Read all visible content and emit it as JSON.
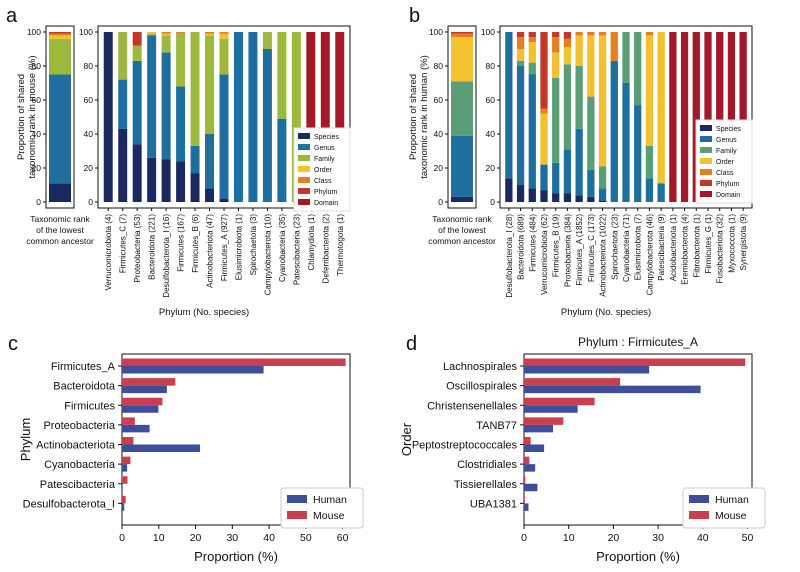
{
  "colors": {
    "Species": "#1a2a5e",
    "Genus": "#1f6f9e",
    "Family": "#9cb93e",
    "Order": "#f2c12e",
    "Class": "#e67e22",
    "Phylum": "#c0392b",
    "Domain": "#a3192a",
    "Family_b": "#5a9e78",
    "Human": "#3d4e9c",
    "Mouse": "#c8404f"
  },
  "chart_data": [
    {
      "panel": "a",
      "type": "stacked-bar",
      "ylabel": "Proportion of shared taxonomic rank in mouse (%)",
      "ylabel_lines": [
        "Proportion of shared",
        "taxonomic rank in mouse (%)"
      ],
      "xlabel": "Phylum (No. species)",
      "ylim": [
        0,
        100
      ],
      "yticks": [
        "0",
        "20",
        "40",
        "60",
        "80",
        "100"
      ],
      "ranks": [
        "Species",
        "Genus",
        "Family",
        "Order",
        "Class",
        "Phylum",
        "Domain"
      ],
      "summary_label": [
        "Taxonomic rank",
        "of the lowest",
        "common ancestor"
      ],
      "summary": [
        11,
        64,
        21,
        2,
        1,
        1,
        0
      ],
      "categories": [
        "Verrucomicrobiota (4)",
        "Firmicutes_C (7)",
        "Proteobacteria (53)",
        "Bacteroidota (221)",
        "Desulfobacterota_I (16)",
        "Firmicutes (167)",
        "Firmicutes_B (6)",
        "Actinobacteriota (47)",
        "Firmicutes_A (927)",
        "Elusimicrobiota (1)",
        "Spirochaetota (3)",
        "Campylobacterota (10)",
        "Cyanobacteria (35)",
        "Patescibacteria (23)",
        "Chlamydiota (1)",
        "Deferribacterota (2)",
        "Thermotogota (1)"
      ],
      "series": [
        {
          "name": "Species",
          "values": [
            100,
            43,
            34,
            26,
            25,
            24,
            17,
            8,
            2,
            0,
            0,
            0,
            0,
            0,
            0,
            0,
            0
          ]
        },
        {
          "name": "Genus",
          "values": [
            0,
            29,
            49,
            72,
            63,
            44,
            16,
            32,
            73,
            100,
            100,
            90,
            49,
            0,
            0,
            0,
            0
          ]
        },
        {
          "name": "Family",
          "values": [
            0,
            28,
            9,
            1,
            10,
            31,
            67,
            58,
            21,
            0,
            0,
            10,
            51,
            100,
            0,
            0,
            0
          ]
        },
        {
          "name": "Order",
          "values": [
            0,
            0,
            0,
            1,
            1,
            0,
            0,
            1,
            3,
            0,
            0,
            0,
            0,
            0,
            0,
            0,
            0
          ]
        },
        {
          "name": "Class",
          "values": [
            0,
            0,
            0,
            0,
            1,
            1,
            0,
            1,
            1,
            0,
            0,
            0,
            0,
            0,
            0,
            0,
            0
          ]
        },
        {
          "name": "Phylum",
          "values": [
            0,
            0,
            8,
            0,
            0,
            0,
            0,
            0,
            0,
            0,
            0,
            0,
            0,
            0,
            0,
            0,
            0
          ]
        },
        {
          "name": "Domain",
          "values": [
            0,
            0,
            0,
            0,
            0,
            0,
            0,
            0,
            0,
            0,
            0,
            0,
            0,
            0,
            100,
            100,
            100
          ]
        }
      ],
      "legend": "right"
    },
    {
      "panel": "b",
      "type": "stacked-bar",
      "ylabel": "Proportion of shared taxonomic rank in human (%)",
      "ylabel_lines": [
        "Proportion of shared",
        "taxonomic rank in human (%)"
      ],
      "xlabel": "Phylum (No. species)",
      "ylim": [
        0,
        100
      ],
      "yticks": [
        "0",
        "20",
        "40",
        "60",
        "80",
        "100"
      ],
      "ranks": [
        "Species",
        "Genus",
        "Family",
        "Order",
        "Class",
        "Phylum",
        "Domain"
      ],
      "summary_label": [
        "Taxonomic rank",
        "of the lowest",
        "common ancestor"
      ],
      "summary": [
        3,
        36,
        32,
        26,
        2,
        1,
        0
      ],
      "categories": [
        "Desulfobacterota_I (28)",
        "Bacteroidota (689)",
        "Firmicutes (484)",
        "Verrucomicrobiota (62)",
        "Firmicutes_B (19)",
        "Proteobacteria (384)",
        "Firmicutes_A (1852)",
        "Firmicutes_C (173)",
        "Actinobacteriota (1022)",
        "Spirochaetota (23)",
        "Cyanobacteria (71)",
        "Elusimicrobiota (7)",
        "Campylobacterota (46)",
        "Patescibacteria (9)",
        "Acidobacteriota (1)",
        "Eremiobacterota (4)",
        "Fibrobacterota (1)",
        "Firmicutes_G (1)",
        "Fusobacteriota (32)",
        "Myxococcota (1)",
        "Synergistota (9)"
      ],
      "series": [
        {
          "name": "Species",
          "values": [
            14,
            10,
            8,
            7,
            5,
            5,
            4,
            3,
            1,
            0,
            0,
            0,
            0,
            0,
            0,
            0,
            0,
            0,
            0,
            0,
            0
          ]
        },
        {
          "name": "Genus",
          "values": [
            86,
            70,
            67,
            15,
            18,
            26,
            39,
            16,
            7,
            83,
            70,
            57,
            14,
            11,
            0,
            0,
            0,
            0,
            0,
            0,
            0
          ]
        },
        {
          "name": "Family",
          "values": [
            0,
            3,
            7,
            0,
            50,
            50,
            37,
            43,
            13,
            0,
            30,
            43,
            19,
            0,
            0,
            0,
            0,
            0,
            0,
            0,
            0
          ]
        },
        {
          "name": "Order",
          "values": [
            0,
            7,
            12,
            30,
            15,
            10,
            18,
            36,
            77,
            0,
            0,
            0,
            65,
            89,
            0,
            0,
            0,
            0,
            0,
            0,
            0
          ]
        },
        {
          "name": "Class",
          "values": [
            0,
            7,
            3,
            3,
            9,
            5,
            2,
            2,
            2,
            17,
            0,
            0,
            2,
            0,
            0,
            0,
            0,
            0,
            0,
            0,
            0
          ]
        },
        {
          "name": "Phylum",
          "values": [
            0,
            3,
            3,
            45,
            3,
            4,
            0,
            0,
            0,
            0,
            0,
            0,
            0,
            0,
            0,
            0,
            0,
            0,
            0,
            0,
            0
          ]
        },
        {
          "name": "Domain",
          "values": [
            0,
            0,
            0,
            0,
            0,
            0,
            0,
            0,
            0,
            0,
            0,
            0,
            0,
            0,
            100,
            100,
            100,
            100,
            100,
            100,
            100
          ]
        }
      ],
      "legend": "right"
    },
    {
      "panel": "c",
      "type": "bar",
      "orientation": "horizontal",
      "title": "",
      "ylabel": "Phylum",
      "xlabel": "Proportion (%)",
      "xlim": [
        0,
        62
      ],
      "xticks": [
        0,
        10,
        20,
        30,
        40,
        50,
        60
      ],
      "categories": [
        "Firmicutes_A",
        "Bacteroidota",
        "Firmicutes",
        "Proteobacteria",
        "Actinobacteriota",
        "Cyanobacteria",
        "Patescibacteria",
        "Desulfobacterota_I"
      ],
      "series": [
        {
          "name": "Human",
          "values": [
            38.5,
            12.2,
            9.9,
            7.5,
            21.2,
            1.4,
            0.2,
            0.6
          ]
        },
        {
          "name": "Mouse",
          "values": [
            60.8,
            14.5,
            11.0,
            3.5,
            3.1,
            2.3,
            1.5,
            1.0
          ]
        }
      ],
      "legend": "bottom-right"
    },
    {
      "panel": "d",
      "type": "bar",
      "orientation": "horizontal",
      "title": "Phylum : Firmicutes_A",
      "ylabel": "Order",
      "xlabel": "Proportion (%)",
      "xlim": [
        0,
        51
      ],
      "xticks": [
        0,
        10,
        20,
        30,
        40,
        50
      ],
      "categories": [
        "Lachnospirales",
        "Oscillospirales",
        "Christensenellales",
        "TANB77",
        "Peptostreptococcales",
        "Clostridiales",
        "Tissierellales",
        "UBA1381"
      ],
      "series": [
        {
          "name": "Human",
          "values": [
            28.0,
            39.5,
            12.0,
            6.5,
            4.5,
            2.5,
            3.0,
            1.0
          ]
        },
        {
          "name": "Mouse",
          "values": [
            49.5,
            21.5,
            15.8,
            8.8,
            1.5,
            1.2,
            0.3,
            0.2
          ]
        }
      ],
      "legend": "bottom-right"
    }
  ],
  "panel_labels": {
    "a": "a",
    "b": "b",
    "c": "c",
    "d": "d"
  },
  "legend_names": {
    "Species": "Species",
    "Genus": "Genus",
    "Family": "Family",
    "Order": "Order",
    "Class": "Class",
    "Phylum": "Phylum",
    "Domain": "Domain",
    "Human": "Human",
    "Mouse": "Mouse"
  }
}
